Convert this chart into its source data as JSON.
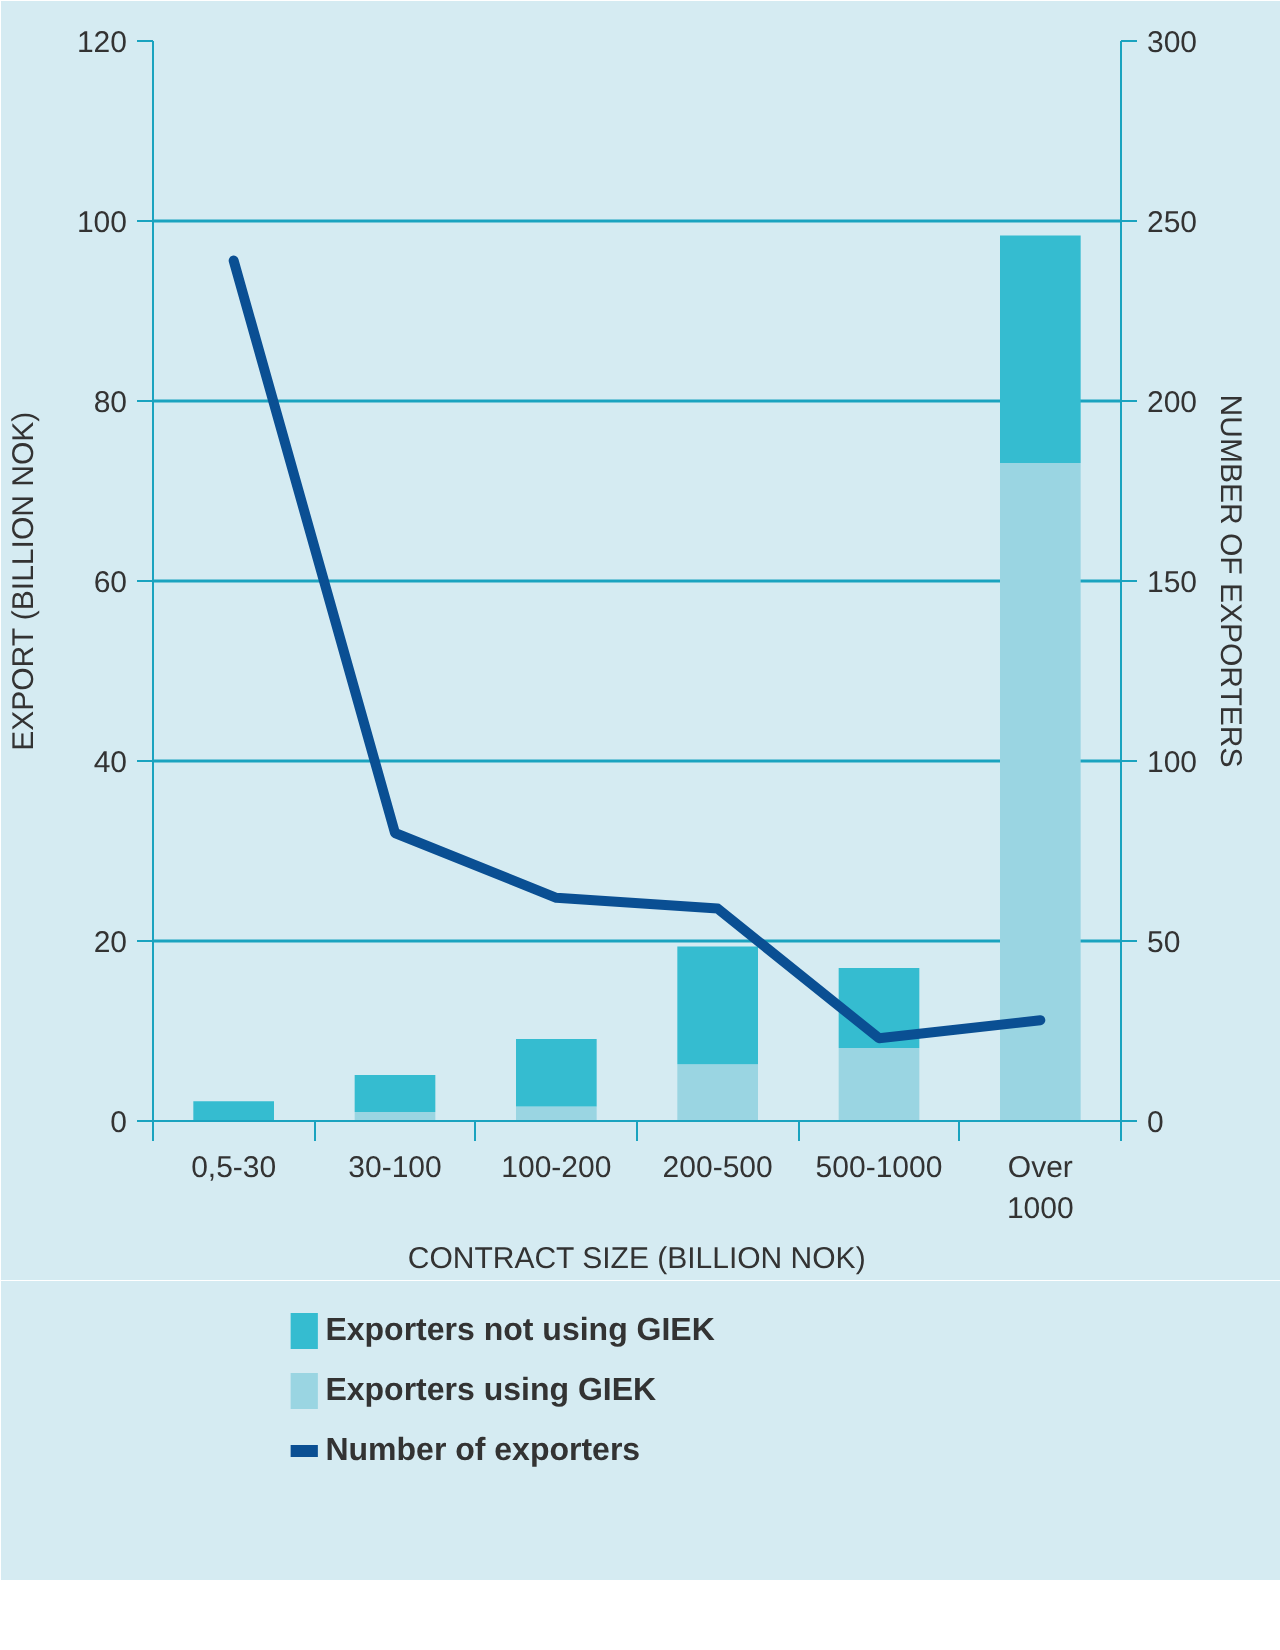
{
  "chart_data": {
    "type": "bar",
    "stacked": true,
    "categories": [
      "0,5-30",
      "30-100",
      "100-200",
      "200-500",
      "500-1000",
      "Over 1000"
    ],
    "series": [
      {
        "name": "Exporters using GIEK",
        "color": "#9ad5e2",
        "values": [
          0,
          1.0,
          1.6,
          6.3,
          8.1,
          73.1
        ]
      },
      {
        "name": "Exporters not using GIEK",
        "color": "#35bcd0",
        "values": [
          2.2,
          4.1,
          7.5,
          13.1,
          8.9,
          25.3
        ]
      },
      {
        "name": "Number of exporters",
        "type": "line",
        "axis": "y2",
        "color": "#0a4f93",
        "values": [
          239,
          80,
          62,
          59,
          23,
          28
        ]
      }
    ],
    "xlabel": "CONTRACT SIZE (BILLION NOK)",
    "ylabel": "EXPORT (BILLION NOK)",
    "y2label": "NUMBER OF EXPORTERS",
    "ylim": [
      0,
      120
    ],
    "yticks": [
      0,
      20,
      40,
      60,
      80,
      100,
      120
    ],
    "y2lim": [
      0,
      300
    ],
    "y2ticks": [
      0,
      50,
      100,
      150,
      200,
      250,
      300
    ],
    "grid": "y",
    "legend": "bottom"
  }
}
